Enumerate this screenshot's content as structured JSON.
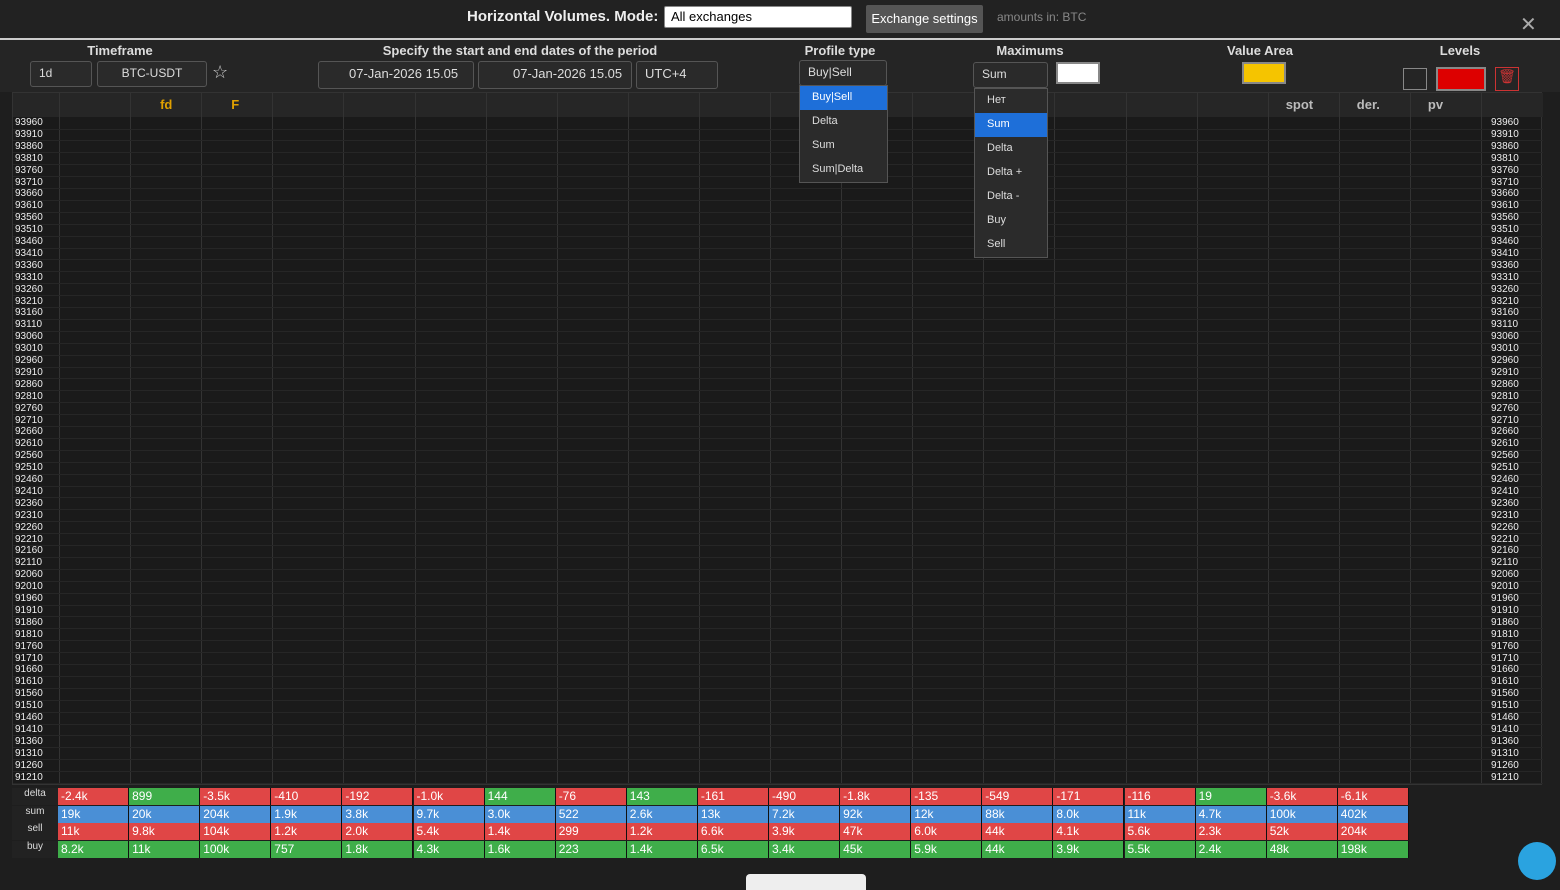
{
  "header": {
    "title": "Horizontal Volumes. Mode:",
    "mode": "All exchanges",
    "exchange_button": "Exchange settings",
    "units": "amounts in: BTC",
    "close": "✕"
  },
  "toolbar": {
    "timeframe_label": "Timeframe",
    "timeframe": "1d",
    "symbol": "BTC-USDT",
    "period_label": "Specify the start and end dates of the period",
    "start": "07-Jan-2026 15.05",
    "end": "07-Jan-2026 15.05",
    "timezone": "UTC+4",
    "profile_label": "Profile type",
    "profile": "Buy|Sell",
    "maximums_label": "Maximums",
    "maximums": "Sum",
    "value_area_label": "Value Area",
    "levels_label": "Levels"
  },
  "profile_menu": {
    "options": [
      "Buy|Sell",
      "Delta",
      "Sum",
      "Sum|Delta"
    ],
    "selected": 0
  },
  "maximums_menu": {
    "options": [
      "Нет",
      "Sum",
      "Delta",
      "Delta +",
      "Delta -",
      "Buy",
      "Sell"
    ],
    "selected": 1
  },
  "columns": {
    "labels": [
      "fd",
      "F",
      "spot",
      "der.",
      "pv"
    ]
  },
  "prices": [
    93960,
    93910,
    93860,
    93810,
    93760,
    93710,
    93660,
    93610,
    93560,
    93510,
    93460,
    93410,
    93360,
    93310,
    93260,
    93210,
    93160,
    93110,
    93060,
    93010,
    92960,
    92910,
    92860,
    92810,
    92760,
    92710,
    92660,
    92610,
    92560,
    92510,
    92460,
    92410,
    92360,
    92310,
    92260,
    92210,
    92160,
    92110,
    92060,
    92010,
    91960,
    91910,
    91860,
    91810,
    91760,
    91710,
    91660,
    91610,
    91560,
    91510,
    91460,
    91410,
    91360,
    91310,
    91260,
    91210
  ],
  "summary": {
    "rows": [
      {
        "name": "delta",
        "cells": [
          "-2.4k",
          "899",
          "-3.5k",
          "-410",
          "-192",
          "-1.0k",
          "144",
          "-76",
          "143",
          "-161",
          "-490",
          "-1.8k",
          "-135",
          "-549",
          "-171",
          "-116",
          "19",
          "-3.6k",
          "-6.1k"
        ]
      },
      {
        "name": "sum",
        "cells": [
          "19k",
          "20k",
          "204k",
          "1.9k",
          "3.8k",
          "9.7k",
          "3.0k",
          "522",
          "2.6k",
          "13k",
          "7.2k",
          "92k",
          "12k",
          "88k",
          "8.0k",
          "11k",
          "4.7k",
          "100k",
          "402k"
        ]
      },
      {
        "name": "sell",
        "cells": [
          "11k",
          "9.8k",
          "104k",
          "1.2k",
          "2.0k",
          "5.4k",
          "1.4k",
          "299",
          "1.2k",
          "6.6k",
          "3.9k",
          "47k",
          "6.0k",
          "44k",
          "4.1k",
          "5.6k",
          "2.3k",
          "52k",
          "204k"
        ]
      },
      {
        "name": "buy",
        "cells": [
          "8.2k",
          "11k",
          "100k",
          "757",
          "1.8k",
          "4.3k",
          "1.6k",
          "223",
          "1.4k",
          "6.5k",
          "3.4k",
          "45k",
          "5.9k",
          "44k",
          "3.9k",
          "5.5k",
          "2.4k",
          "48k",
          "198k"
        ]
      }
    ]
  }
}
